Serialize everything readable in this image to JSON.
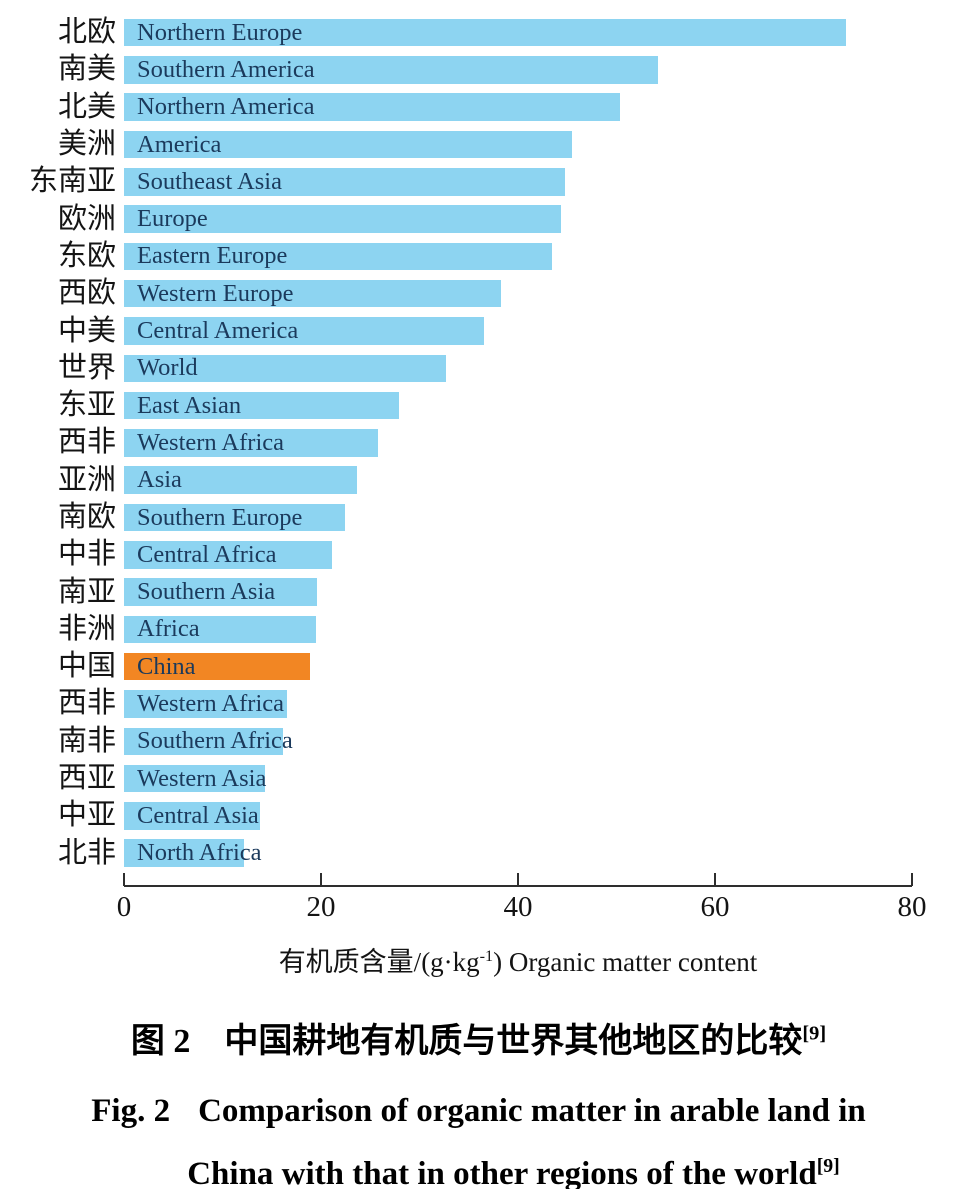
{
  "chart_data": {
    "type": "bar",
    "orientation": "horizontal",
    "xlabel_prefix": "有机质含量/(g·kg",
    "xlabel_sup": "-1",
    "xlabel_suffix": ") Organic matter content",
    "xlim": [
      0,
      80
    ],
    "xticks": [
      0,
      20,
      40,
      60,
      80
    ],
    "grid": false,
    "bar_color": "#8DD4F1",
    "highlight_color": "#F28623",
    "bar_label_color": "#1B3A5C",
    "highlight_index": 17,
    "rows": [
      {
        "cn": "北欧",
        "en": "Northern Europe",
        "value": 73.3
      },
      {
        "cn": "南美",
        "en": "Southern America",
        "value": 54.2
      },
      {
        "cn": "北美",
        "en": "Northern America",
        "value": 50.4
      },
      {
        "cn": "美洲",
        "en": "America",
        "value": 45.5
      },
      {
        "cn": "东南亚",
        "en": "Southeast Asia",
        "value": 44.8
      },
      {
        "cn": "欧洲",
        "en": "Europe",
        "value": 44.4
      },
      {
        "cn": "东欧",
        "en": "Eastern Europe",
        "value": 43.5
      },
      {
        "cn": "西欧",
        "en": "Western Europe",
        "value": 38.3
      },
      {
        "cn": "中美",
        "en": "Central America",
        "value": 36.5
      },
      {
        "cn": "世界",
        "en": "World",
        "value": 32.7
      },
      {
        "cn": "东亚",
        "en": "East Asian",
        "value": 27.9
      },
      {
        "cn": "西非",
        "en": "Western Africa",
        "value": 25.8
      },
      {
        "cn": "亚洲",
        "en": "Asia",
        "value": 23.7
      },
      {
        "cn": "南欧",
        "en": "Southern Europe",
        "value": 22.4
      },
      {
        "cn": "中非",
        "en": "Central Africa",
        "value": 21.1
      },
      {
        "cn": "南亚",
        "en": "Southern Asia",
        "value": 19.6
      },
      {
        "cn": "非洲",
        "en": "Africa",
        "value": 19.5
      },
      {
        "cn": "中国",
        "en": "China",
        "value": 18.9
      },
      {
        "cn": "西非",
        "en": "Western Africa",
        "value": 16.5
      },
      {
        "cn": "南非",
        "en": "Southern Africa",
        "value": 16.1
      },
      {
        "cn": "西亚",
        "en": "Western Asia",
        "value": 14.3
      },
      {
        "cn": "中亚",
        "en": "Central Asia",
        "value": 13.8
      },
      {
        "cn": "北非",
        "en": "North Africa",
        "value": 12.2
      }
    ]
  },
  "captions": {
    "zh_fig": "图 2",
    "zh_text": "中国耕地有机质与世界其他地区的比较",
    "zh_ref": "[9]",
    "en_fig": "Fig. 2",
    "en_line1": "Comparison of organic matter in arable land in",
    "en_line2": "China with that in other regions of the world",
    "en_ref": "[9]"
  }
}
